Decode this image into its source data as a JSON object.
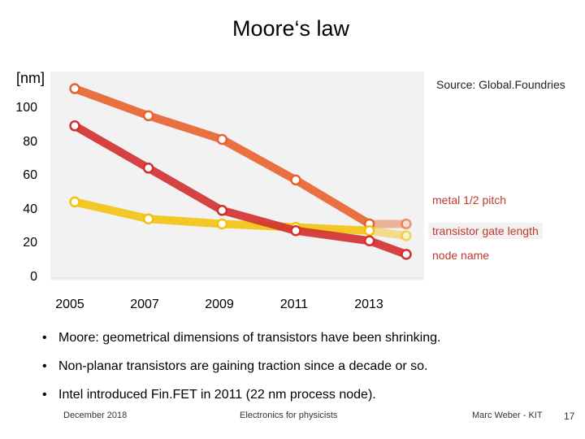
{
  "slide": {
    "title": "Moore‘s law",
    "unit_label": "[nm]",
    "source": "Source: Global.Foundries",
    "bullets": [
      "Moore: geometrical dimensions of transistors have been shrinking.",
      "Non-planar transistors are gaining traction since a decade or so.",
      "Intel introduced Fin.FET in 2011 (22 nm process node)."
    ],
    "bullet_symbol": "•",
    "footer": {
      "date": "December 2018",
      "course": "Electronics for physicists",
      "author": "Marc Weber - KIT",
      "page": "17"
    }
  },
  "chart_data": {
    "type": "line",
    "x": [
      2005,
      2007,
      2009,
      2011,
      2013,
      2014
    ],
    "x_ticks": [
      "2005",
      "2007",
      "2009",
      "2011",
      "2013"
    ],
    "y_ticks": [
      "0",
      "20",
      "40",
      "60",
      "80",
      "100"
    ],
    "ylim": [
      0,
      120
    ],
    "ylabel": "[nm]",
    "series": [
      {
        "name": "metal 1/2 pitch",
        "color": "#e8622c",
        "values": [
          112,
          96,
          82,
          58,
          32,
          32
        ],
        "last_faded": true
      },
      {
        "name": "transistor gate length",
        "color": "#f2c20f",
        "values": [
          45,
          35,
          32,
          30,
          28,
          25
        ],
        "last_faded": true
      },
      {
        "name": "node name",
        "color": "#d32f2f",
        "values": [
          90,
          65,
          40,
          28,
          22,
          14
        ],
        "last_faded": false
      }
    ],
    "label_colors": {
      "metal 1/2 pitch": "#c0392b",
      "transistor gate length": "#c0392b",
      "node name": "#c0392b"
    }
  }
}
